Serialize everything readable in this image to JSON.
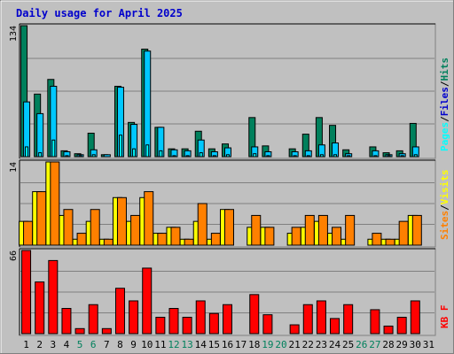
{
  "chart_data": {
    "type": "bar",
    "title": "Daily usage for April 2025",
    "colors": {
      "background": "#c0c0c0",
      "panel": "#c0c0c0",
      "grid": "#808080",
      "title": "#0000cc",
      "label_dark": "#000000",
      "weekend": "#00805c",
      "hits": "#00805c",
      "files": "#00c8ff",
      "pages": "#00ffff",
      "visits": "#ffff00",
      "sites": "#ff8000",
      "kbf": "#ff0000"
    },
    "x": [
      "1",
      "2",
      "3",
      "4",
      "5",
      "6",
      "7",
      "8",
      "9",
      "10",
      "11",
      "12",
      "13",
      "14",
      "15",
      "16",
      "17",
      "18",
      "19",
      "20",
      "21",
      "22",
      "23",
      "24",
      "25",
      "26",
      "27",
      "28",
      "29",
      "30",
      "31"
    ],
    "weekend_days": [
      "5",
      "6",
      "12",
      "13",
      "19",
      "20",
      "26",
      "27"
    ],
    "panels": [
      {
        "name": "hits-files-pages",
        "ymax_label": "134",
        "ymax": 134,
        "legend": [
          {
            "text": "Pages",
            "color": "#00ffff"
          },
          {
            "text": "/",
            "color": "#000000"
          },
          {
            "text": "Files",
            "color": "#0000cc"
          },
          {
            "text": "/",
            "color": "#000000"
          },
          {
            "text": "Hits",
            "color": "#00805c"
          }
        ],
        "series": [
          {
            "role": "hits",
            "values": [
              134,
              64,
              79,
              6,
              3,
              24,
              2,
              72,
              35,
              110,
              30,
              8,
              8,
              26,
              8,
              13,
              0,
              40,
              11,
              0,
              8,
              23,
              40,
              32,
              7,
              0,
              10,
              4,
              6,
              34,
              0
            ]
          },
          {
            "role": "files",
            "values": [
              56,
              44,
              72,
              5,
              2,
              7,
              2,
              71,
              33,
              108,
              30,
              7,
              6,
              17,
              5,
              9,
              0,
              10,
              5,
              0,
              5,
              6,
              12,
              14,
              3,
              0,
              6,
              2,
              3,
              10,
              0
            ]
          },
          {
            "role": "pages",
            "values": [
              10,
              4,
              17,
              1,
              1,
              2,
              0,
              22,
              8,
              12,
              6,
              1,
              1,
              4,
              1,
              2,
              0,
              3,
              1,
              0,
              1,
              1,
              2,
              2,
              1,
              0,
              1,
              1,
              1,
              2,
              0
            ]
          }
        ]
      },
      {
        "name": "visits-sites",
        "ymax_label": "14",
        "ymax": 14,
        "legend": [
          {
            "text": "Sites",
            "color": "#ff8000"
          },
          {
            "text": "/",
            "color": "#000000"
          },
          {
            "text": "Visits",
            "color": "#ffff00"
          }
        ],
        "series": [
          {
            "role": "visits",
            "values": [
              4,
              9,
              14,
              5,
              1,
              4,
              1,
              8,
              4,
              8,
              2,
              3,
              1,
              4,
              1,
              6,
              0,
              3,
              3,
              0,
              2,
              3,
              4,
              2,
              1,
              0,
              1,
              1,
              1,
              5,
              0
            ]
          },
          {
            "role": "sites",
            "values": [
              4,
              9,
              14,
              6,
              2,
              6,
              1,
              8,
              5,
              9,
              2,
              3,
              1,
              7,
              2,
              6,
              0,
              5,
              3,
              0,
              3,
              5,
              5,
              3,
              5,
              0,
              2,
              1,
              4,
              5,
              0
            ]
          }
        ]
      },
      {
        "name": "kbf",
        "ymax_label": "66",
        "ymax": 66,
        "legend": [
          {
            "text": "KB F",
            "color": "#ff0000"
          }
        ],
        "series": [
          {
            "role": "kbf",
            "values": [
              66,
              41,
              58,
              20,
              4,
              23,
              4,
              36,
              26,
              52,
              13,
              20,
              13,
              26,
              16,
              23,
              0,
              31,
              15,
              0,
              7,
              23,
              26,
              12,
              23,
              0,
              19,
              6,
              13,
              26,
              0
            ]
          }
        ]
      }
    ]
  }
}
